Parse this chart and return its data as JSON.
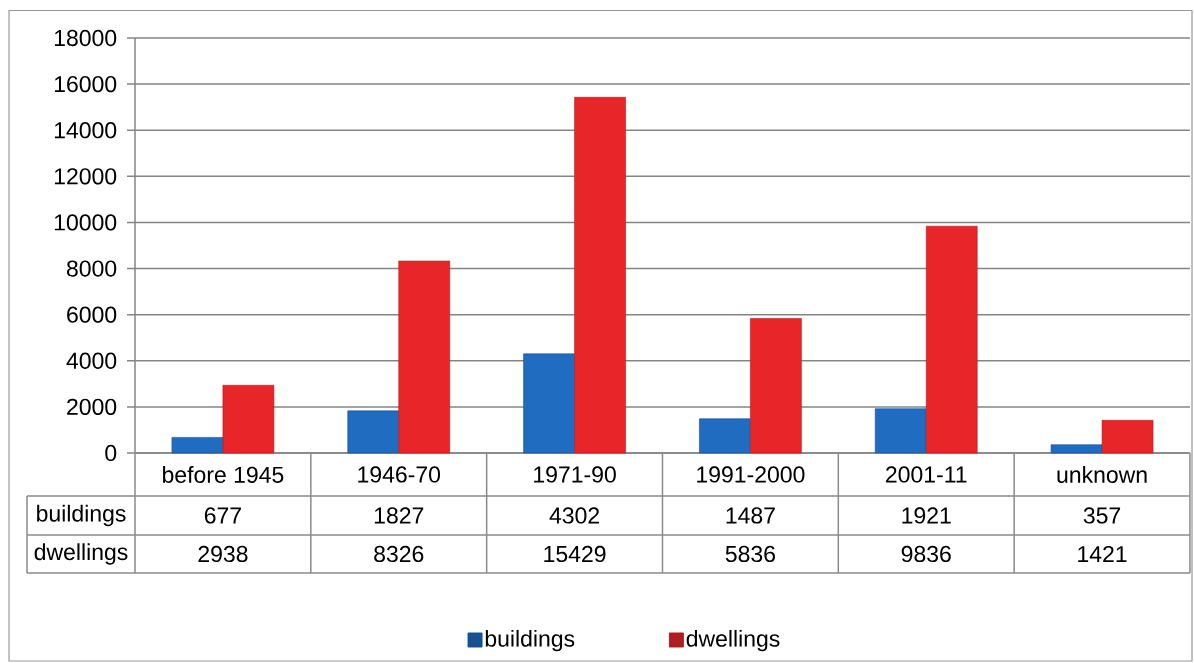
{
  "chart_data": {
    "type": "bar",
    "categories": [
      "before 1945",
      "1946-70",
      "1971-90",
      "1991-2000",
      "2001-11",
      "unknown"
    ],
    "series": [
      {
        "name": "buildings",
        "color": "#1f6cc0",
        "values": [
          677,
          1827,
          4302,
          1487,
          1921,
          357
        ]
      },
      {
        "name": "dwellings",
        "color": "#e8262a",
        "values": [
          2938,
          8326,
          15429,
          5836,
          9836,
          1421
        ]
      }
    ],
    "ylim": [
      0,
      18000
    ],
    "yticks": [
      0,
      2000,
      4000,
      6000,
      8000,
      10000,
      12000,
      14000,
      16000,
      18000
    ],
    "grid": "y",
    "legend": "bottom",
    "data_labels": true
  }
}
